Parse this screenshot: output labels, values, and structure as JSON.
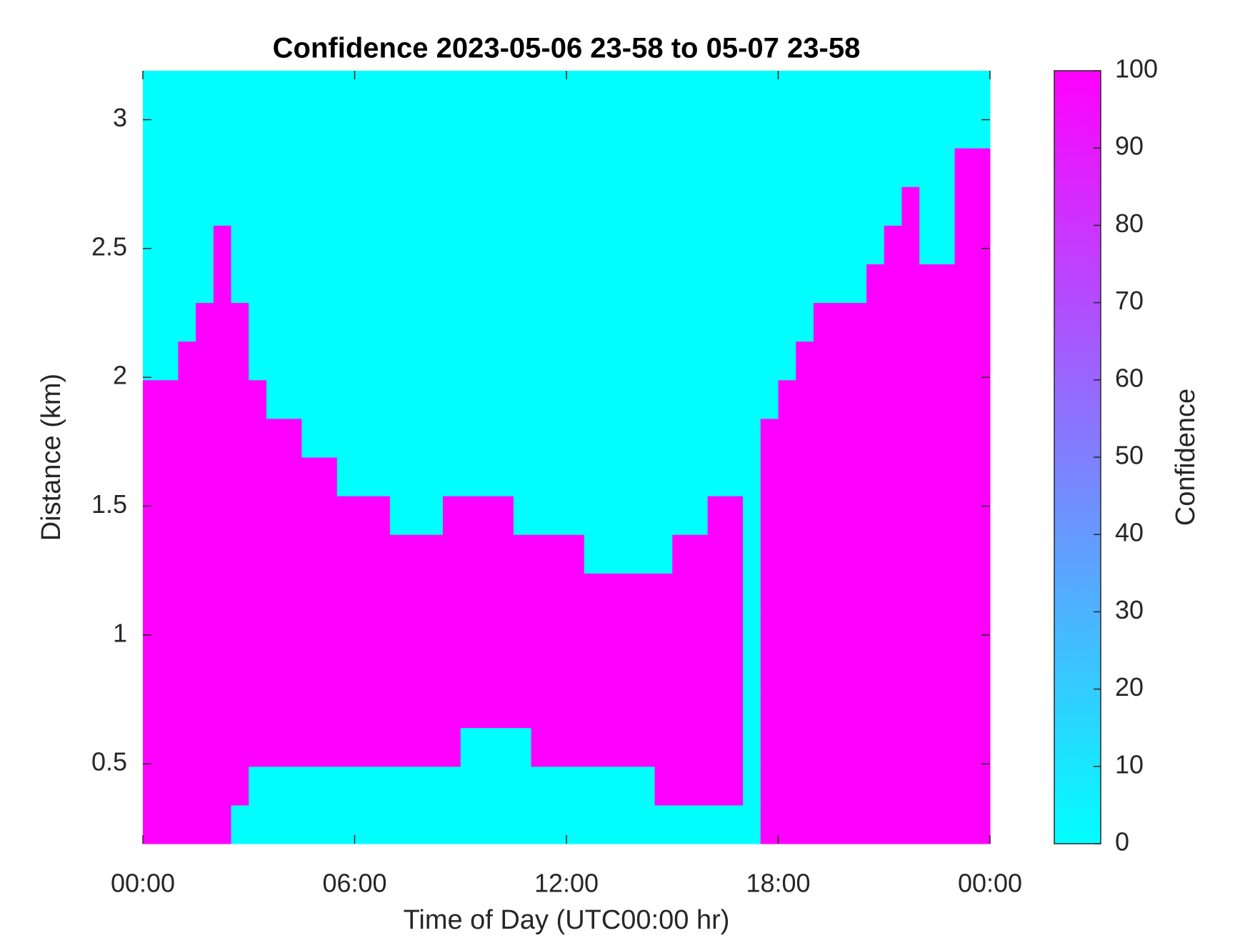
{
  "chart_data": {
    "type": "heatmap",
    "title": "Confidence 2023-05-06 23-58 to 05-07 23-58",
    "xlabel": "Time of Day (UTC00:00 hr)",
    "ylabel": "Distance (km)",
    "colorbar_label": "Confidence",
    "colormap": [
      "#00ffff",
      "#ff00ff"
    ],
    "xlim": [
      0,
      24
    ],
    "xticks": [
      {
        "value": 0,
        "label": "00:00"
      },
      {
        "value": 6,
        "label": "06:00"
      },
      {
        "value": 12,
        "label": "12:00"
      },
      {
        "value": 18,
        "label": "18:00"
      },
      {
        "value": 24,
        "label": "00:00"
      }
    ],
    "ylim": [
      0.19,
      3.19
    ],
    "yticks": [
      0.5,
      1,
      1.5,
      2,
      2.5,
      3
    ],
    "clim": [
      0,
      100
    ],
    "cticks": [
      0,
      10,
      20,
      30,
      40,
      50,
      60,
      70,
      80,
      90,
      100
    ],
    "x": [
      0.25,
      0.75,
      1.25,
      1.75,
      2.25,
      2.75,
      3.25,
      3.75,
      4.25,
      4.75,
      5.25,
      5.75,
      6.25,
      6.75,
      7.25,
      7.75,
      8.25,
      8.75,
      9.25,
      9.75,
      10.25,
      10.75,
      11.25,
      11.75,
      12.25,
      12.75,
      13.25,
      13.75,
      14.25,
      14.75,
      15.25,
      15.75,
      16.25,
      16.75,
      17.25,
      17.75,
      18.25,
      18.75,
      19.25,
      19.75,
      20.25,
      20.75,
      21.25,
      21.75,
      22.25,
      22.75,
      23.25,
      23.75
    ],
    "y": [
      0.265,
      0.415,
      0.565,
      0.715,
      0.865,
      1.015,
      1.165,
      1.315,
      1.465,
      1.615,
      1.765,
      1.915,
      2.065,
      2.215,
      2.365,
      2.515,
      2.665,
      2.815,
      2.965,
      3.115
    ],
    "z": [
      [
        100,
        100,
        100,
        100,
        100,
        0,
        0,
        0,
        0,
        0,
        0,
        0,
        0,
        0,
        0,
        0,
        0,
        0,
        0,
        0,
        0,
        0,
        0,
        0,
        0,
        0,
        0,
        0,
        0,
        0,
        0,
        0,
        0,
        0,
        0,
        100,
        100,
        100,
        100,
        100,
        100,
        100,
        100,
        100,
        100,
        100,
        100,
        100
      ],
      [
        100,
        100,
        100,
        100,
        100,
        100,
        0,
        0,
        0,
        0,
        0,
        0,
        0,
        0,
        0,
        0,
        0,
        0,
        0,
        0,
        0,
        0,
        0,
        0,
        0,
        0,
        0,
        0,
        0,
        100,
        100,
        100,
        100,
        100,
        0,
        100,
        100,
        100,
        100,
        100,
        100,
        100,
        100,
        100,
        100,
        100,
        100,
        100
      ],
      [
        100,
        100,
        100,
        100,
        100,
        100,
        100,
        100,
        100,
        100,
        100,
        100,
        100,
        100,
        100,
        100,
        100,
        100,
        0,
        0,
        0,
        0,
        100,
        100,
        100,
        100,
        100,
        100,
        100,
        100,
        100,
        100,
        100,
        100,
        0,
        100,
        100,
        100,
        100,
        100,
        100,
        100,
        100,
        100,
        100,
        100,
        100,
        100
      ],
      [
        100,
        100,
        100,
        100,
        100,
        100,
        100,
        100,
        100,
        100,
        100,
        100,
        100,
        100,
        100,
        100,
        100,
        100,
        100,
        100,
        100,
        100,
        100,
        100,
        100,
        100,
        100,
        100,
        100,
        100,
        100,
        100,
        100,
        100,
        0,
        100,
        100,
        100,
        100,
        100,
        100,
        100,
        100,
        100,
        100,
        100,
        100,
        100
      ],
      [
        100,
        100,
        100,
        100,
        100,
        100,
        100,
        100,
        100,
        100,
        100,
        100,
        100,
        100,
        100,
        100,
        100,
        100,
        100,
        100,
        100,
        100,
        100,
        100,
        100,
        100,
        100,
        100,
        100,
        100,
        100,
        100,
        100,
        100,
        0,
        100,
        100,
        100,
        100,
        100,
        100,
        100,
        100,
        100,
        100,
        100,
        100,
        100
      ],
      [
        100,
        100,
        100,
        100,
        100,
        100,
        100,
        100,
        100,
        100,
        100,
        100,
        100,
        100,
        100,
        100,
        100,
        100,
        100,
        100,
        100,
        100,
        100,
        100,
        100,
        100,
        100,
        100,
        100,
        100,
        100,
        100,
        100,
        100,
        0,
        100,
        100,
        100,
        100,
        100,
        100,
        100,
        100,
        100,
        100,
        100,
        100,
        100
      ],
      [
        100,
        100,
        100,
        100,
        100,
        100,
        100,
        100,
        100,
        100,
        100,
        100,
        100,
        100,
        100,
        100,
        100,
        100,
        100,
        100,
        100,
        100,
        100,
        100,
        100,
        100,
        100,
        100,
        100,
        100,
        100,
        100,
        100,
        100,
        0,
        100,
        100,
        100,
        100,
        100,
        100,
        100,
        100,
        100,
        100,
        100,
        100,
        100
      ],
      [
        100,
        100,
        100,
        100,
        100,
        100,
        100,
        100,
        100,
        100,
        100,
        100,
        100,
        100,
        100,
        100,
        100,
        100,
        100,
        100,
        100,
        100,
        100,
        100,
        100,
        0,
        0,
        0,
        0,
        0,
        100,
        100,
        100,
        100,
        0,
        100,
        100,
        100,
        100,
        100,
        100,
        100,
        100,
        100,
        100,
        100,
        100,
        100
      ],
      [
        100,
        100,
        100,
        100,
        100,
        100,
        100,
        100,
        100,
        100,
        100,
        100,
        100,
        100,
        0,
        0,
        0,
        100,
        100,
        100,
        100,
        0,
        0,
        0,
        0,
        0,
        0,
        0,
        0,
        0,
        0,
        0,
        100,
        100,
        0,
        100,
        100,
        100,
        100,
        100,
        100,
        100,
        100,
        100,
        100,
        100,
        100,
        100
      ],
      [
        100,
        100,
        100,
        100,
        100,
        100,
        100,
        100,
        100,
        100,
        100,
        0,
        0,
        0,
        0,
        0,
        0,
        0,
        0,
        0,
        0,
        0,
        0,
        0,
        0,
        0,
        0,
        0,
        0,
        0,
        0,
        0,
        0,
        0,
        0,
        100,
        100,
        100,
        100,
        100,
        100,
        100,
        100,
        100,
        100,
        100,
        100,
        100
      ],
      [
        100,
        100,
        100,
        100,
        100,
        100,
        100,
        100,
        100,
        0,
        0,
        0,
        0,
        0,
        0,
        0,
        0,
        0,
        0,
        0,
        0,
        0,
        0,
        0,
        0,
        0,
        0,
        0,
        0,
        0,
        0,
        0,
        0,
        0,
        0,
        100,
        100,
        100,
        100,
        100,
        100,
        100,
        100,
        100,
        100,
        100,
        100,
        100
      ],
      [
        100,
        100,
        100,
        100,
        100,
        100,
        100,
        0,
        0,
        0,
        0,
        0,
        0,
        0,
        0,
        0,
        0,
        0,
        0,
        0,
        0,
        0,
        0,
        0,
        0,
        0,
        0,
        0,
        0,
        0,
        0,
        0,
        0,
        0,
        0,
        0,
        100,
        100,
        100,
        100,
        100,
        100,
        100,
        100,
        100,
        100,
        100,
        100
      ],
      [
        0,
        0,
        100,
        100,
        100,
        100,
        0,
        0,
        0,
        0,
        0,
        0,
        0,
        0,
        0,
        0,
        0,
        0,
        0,
        0,
        0,
        0,
        0,
        0,
        0,
        0,
        0,
        0,
        0,
        0,
        0,
        0,
        0,
        0,
        0,
        0,
        0,
        100,
        100,
        100,
        100,
        100,
        100,
        100,
        100,
        100,
        100,
        100
      ],
      [
        0,
        0,
        0,
        100,
        100,
        100,
        0,
        0,
        0,
        0,
        0,
        0,
        0,
        0,
        0,
        0,
        0,
        0,
        0,
        0,
        0,
        0,
        0,
        0,
        0,
        0,
        0,
        0,
        0,
        0,
        0,
        0,
        0,
        0,
        0,
        0,
        0,
        0,
        100,
        100,
        100,
        100,
        100,
        100,
        100,
        100,
        100,
        100
      ],
      [
        0,
        0,
        0,
        0,
        100,
        0,
        0,
        0,
        0,
        0,
        0,
        0,
        0,
        0,
        0,
        0,
        0,
        0,
        0,
        0,
        0,
        0,
        0,
        0,
        0,
        0,
        0,
        0,
        0,
        0,
        0,
        0,
        0,
        0,
        0,
        0,
        0,
        0,
        0,
        0,
        0,
        100,
        100,
        100,
        100,
        100,
        100,
        100
      ],
      [
        0,
        0,
        0,
        0,
        100,
        0,
        0,
        0,
        0,
        0,
        0,
        0,
        0,
        0,
        0,
        0,
        0,
        0,
        0,
        0,
        0,
        0,
        0,
        0,
        0,
        0,
        0,
        0,
        0,
        0,
        0,
        0,
        0,
        0,
        0,
        0,
        0,
        0,
        0,
        0,
        0,
        0,
        100,
        100,
        0,
        0,
        100,
        100
      ],
      [
        0,
        0,
        0,
        0,
        0,
        0,
        0,
        0,
        0,
        0,
        0,
        0,
        0,
        0,
        0,
        0,
        0,
        0,
        0,
        0,
        0,
        0,
        0,
        0,
        0,
        0,
        0,
        0,
        0,
        0,
        0,
        0,
        0,
        0,
        0,
        0,
        0,
        0,
        0,
        0,
        0,
        0,
        0,
        100,
        0,
        0,
        100,
        100
      ],
      [
        0,
        0,
        0,
        0,
        0,
        0,
        0,
        0,
        0,
        0,
        0,
        0,
        0,
        0,
        0,
        0,
        0,
        0,
        0,
        0,
        0,
        0,
        0,
        0,
        0,
        0,
        0,
        0,
        0,
        0,
        0,
        0,
        0,
        0,
        0,
        0,
        0,
        0,
        0,
        0,
        0,
        0,
        0,
        0,
        0,
        0,
        100,
        100
      ],
      [
        0,
        0,
        0,
        0,
        0,
        0,
        0,
        0,
        0,
        0,
        0,
        0,
        0,
        0,
        0,
        0,
        0,
        0,
        0,
        0,
        0,
        0,
        0,
        0,
        0,
        0,
        0,
        0,
        0,
        0,
        0,
        0,
        0,
        0,
        0,
        0,
        0,
        0,
        0,
        0,
        0,
        0,
        0,
        0,
        0,
        0,
        0,
        0
      ],
      [
        0,
        0,
        0,
        0,
        0,
        0,
        0,
        0,
        0,
        0,
        0,
        0,
        0,
        0,
        0,
        0,
        0,
        0,
        0,
        0,
        0,
        0,
        0,
        0,
        0,
        0,
        0,
        0,
        0,
        0,
        0,
        0,
        0,
        0,
        0,
        0,
        0,
        0,
        0,
        0,
        0,
        0,
        0,
        0,
        0,
        0,
        0,
        0
      ]
    ]
  }
}
